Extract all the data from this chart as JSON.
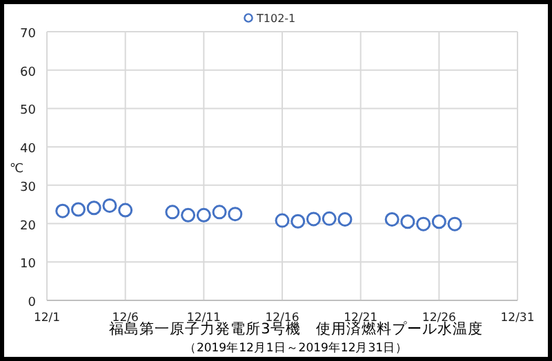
{
  "chart_data": {
    "type": "scatter",
    "title": "福島第一原子力発電所3号機　使用済燃料プール水温度",
    "subtitle": "（2019年12月1日～2019年12月31日）",
    "ylabel": "℃",
    "x": [
      "2019-12-02",
      "2019-12-03",
      "2019-12-04",
      "2019-12-05",
      "2019-12-06",
      "2019-12-09",
      "2019-12-10",
      "2019-12-11",
      "2019-12-12",
      "2019-12-13",
      "2019-12-16",
      "2019-12-17",
      "2019-12-18",
      "2019-12-19",
      "2019-12-20",
      "2019-12-23",
      "2019-12-24",
      "2019-12-25",
      "2019-12-26",
      "2019-12-27"
    ],
    "series": [
      {
        "name": "T102-1",
        "color": "#4472c4",
        "values": [
          23.3,
          23.7,
          24.1,
          24.7,
          23.5,
          23.0,
          22.2,
          22.2,
          23.0,
          22.5,
          20.8,
          20.6,
          21.2,
          21.3,
          21.1,
          21.1,
          20.5,
          19.9,
          20.5,
          19.9
        ]
      }
    ],
    "xlim": [
      "2019-12-01",
      "2019-12-31"
    ],
    "xticks": [
      {
        "value": "2019-12-01",
        "label": "12/1"
      },
      {
        "value": "2019-12-06",
        "label": "12/6"
      },
      {
        "value": "2019-12-11",
        "label": "12/11"
      },
      {
        "value": "2019-12-16",
        "label": "12/16"
      },
      {
        "value": "2019-12-21",
        "label": "12/21"
      },
      {
        "value": "2019-12-26",
        "label": "12/26"
      },
      {
        "value": "2019-12-31",
        "label": "12/31"
      }
    ],
    "ylim": [
      0,
      70
    ],
    "yticks": [
      0,
      10,
      20,
      30,
      40,
      50,
      60,
      70
    ],
    "grid": true,
    "legend": "top",
    "marker": "circle"
  }
}
